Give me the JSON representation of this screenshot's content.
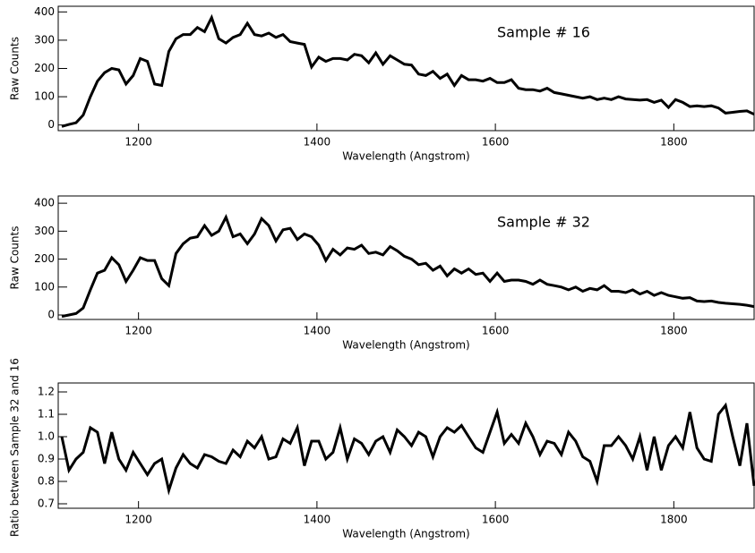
{
  "chart_data": [
    {
      "type": "line",
      "annotation": "Sample # 16",
      "xlabel": "Wavelength (Angstrom)",
      "ylabel": "Raw Counts",
      "color": "#000000",
      "xlim": [
        1110,
        1890
      ],
      "xticks": [
        1200,
        1400,
        1600,
        1800
      ],
      "ylim": [
        -20,
        420
      ],
      "yticks": [
        0,
        100,
        200,
        300,
        400
      ],
      "x": [
        1114,
        1122,
        1130,
        1138,
        1146,
        1154,
        1162,
        1170,
        1178,
        1186,
        1194,
        1202,
        1210,
        1218,
        1226,
        1234,
        1242,
        1250,
        1258,
        1266,
        1274,
        1282,
        1290,
        1298,
        1306,
        1314,
        1322,
        1330,
        1338,
        1346,
        1354,
        1362,
        1370,
        1378,
        1386,
        1394,
        1402,
        1410,
        1418,
        1426,
        1434,
        1442,
        1450,
        1458,
        1466,
        1474,
        1482,
        1490,
        1498,
        1506,
        1514,
        1522,
        1530,
        1538,
        1546,
        1554,
        1562,
        1570,
        1578,
        1586,
        1594,
        1602,
        1610,
        1618,
        1626,
        1634,
        1642,
        1650,
        1658,
        1666,
        1674,
        1682,
        1690,
        1698,
        1706,
        1714,
        1722,
        1730,
        1738,
        1746,
        1754,
        1762,
        1770,
        1778,
        1786,
        1794,
        1802,
        1810,
        1818,
        1826,
        1834,
        1842,
        1850,
        1858,
        1866,
        1874,
        1882,
        1890
      ],
      "values": [
        -5,
        2,
        8,
        35,
        100,
        155,
        185,
        200,
        195,
        145,
        175,
        235,
        225,
        145,
        140,
        260,
        305,
        320,
        320,
        345,
        330,
        380,
        305,
        290,
        310,
        320,
        360,
        320,
        315,
        325,
        310,
        320,
        295,
        290,
        285,
        205,
        240,
        225,
        235,
        235,
        230,
        250,
        245,
        220,
        255,
        215,
        245,
        230,
        215,
        212,
        180,
        175,
        190,
        165,
        180,
        140,
        175,
        160,
        160,
        155,
        165,
        150,
        150,
        160,
        130,
        125,
        125,
        120,
        130,
        115,
        110,
        105,
        100,
        95,
        100,
        90,
        95,
        90,
        100,
        92,
        90,
        88,
        90,
        80,
        88,
        62,
        90,
        80,
        65,
        68,
        65,
        68,
        60,
        42,
        45,
        48,
        50,
        38
      ]
    },
    {
      "type": "line",
      "annotation": "Sample # 32",
      "xlabel": "Wavelength (Angstrom)",
      "ylabel": "Raw Counts",
      "color": "#000000",
      "xlim": [
        1110,
        1890
      ],
      "xticks": [
        1200,
        1400,
        1600,
        1800
      ],
      "ylim": [
        -16,
        426
      ],
      "yticks": [
        0,
        100,
        200,
        300,
        400
      ],
      "x": [
        1114,
        1122,
        1130,
        1138,
        1146,
        1154,
        1162,
        1170,
        1178,
        1186,
        1194,
        1202,
        1210,
        1218,
        1226,
        1234,
        1242,
        1250,
        1258,
        1266,
        1274,
        1282,
        1290,
        1298,
        1306,
        1314,
        1322,
        1330,
        1338,
        1346,
        1354,
        1362,
        1370,
        1378,
        1386,
        1394,
        1402,
        1410,
        1418,
        1426,
        1434,
        1442,
        1450,
        1458,
        1466,
        1474,
        1482,
        1490,
        1498,
        1506,
        1514,
        1522,
        1530,
        1538,
        1546,
        1554,
        1562,
        1570,
        1578,
        1586,
        1594,
        1602,
        1610,
        1618,
        1626,
        1634,
        1642,
        1650,
        1658,
        1666,
        1674,
        1682,
        1690,
        1698,
        1706,
        1714,
        1722,
        1730,
        1738,
        1746,
        1754,
        1762,
        1770,
        1778,
        1786,
        1794,
        1802,
        1810,
        1818,
        1826,
        1834,
        1842,
        1850,
        1858,
        1866,
        1874,
        1882,
        1890
      ],
      "values": [
        -5,
        0,
        5,
        25,
        90,
        150,
        160,
        205,
        180,
        120,
        160,
        205,
        195,
        195,
        130,
        105,
        220,
        255,
        275,
        280,
        320,
        285,
        300,
        350,
        280,
        290,
        255,
        290,
        345,
        320,
        265,
        305,
        310,
        270,
        290,
        280,
        250,
        195,
        235,
        215,
        240,
        235,
        250,
        220,
        225,
        215,
        245,
        230,
        210,
        200,
        180,
        185,
        160,
        175,
        140,
        165,
        150,
        165,
        145,
        150,
        120,
        150,
        120,
        125,
        125,
        120,
        110,
        125,
        110,
        105,
        100,
        90,
        100,
        85,
        95,
        90,
        105,
        85,
        85,
        80,
        90,
        75,
        85,
        70,
        80,
        70,
        65,
        60,
        62,
        50,
        48,
        50,
        45,
        42,
        40,
        38,
        35,
        30
      ]
    },
    {
      "type": "line",
      "xlabel": "Wavelength (Angstrom)",
      "ylabel": "Ratio between Sample 32 and 16",
      "color": "#000000",
      "xlim": [
        1110,
        1890
      ],
      "xticks": [
        1200,
        1400,
        1600,
        1800
      ],
      "ylim": [
        0.68,
        1.24
      ],
      "yticks": [
        0.7,
        0.8,
        0.9,
        {
          "value": 1,
          "label": "1.0"
        },
        1.1,
        1.2
      ],
      "x": [
        1114,
        1122,
        1130,
        1138,
        1146,
        1154,
        1162,
        1170,
        1178,
        1186,
        1194,
        1202,
        1210,
        1218,
        1226,
        1234,
        1242,
        1250,
        1258,
        1266,
        1274,
        1282,
        1290,
        1298,
        1306,
        1314,
        1322,
        1330,
        1338,
        1346,
        1354,
        1362,
        1370,
        1378,
        1386,
        1394,
        1402,
        1410,
        1418,
        1426,
        1434,
        1442,
        1450,
        1458,
        1466,
        1474,
        1482,
        1490,
        1498,
        1506,
        1514,
        1522,
        1530,
        1538,
        1546,
        1554,
        1562,
        1570,
        1578,
        1586,
        1594,
        1602,
        1610,
        1618,
        1626,
        1634,
        1642,
        1650,
        1658,
        1666,
        1674,
        1682,
        1690,
        1698,
        1706,
        1714,
        1722,
        1730,
        1738,
        1746,
        1754,
        1762,
        1770,
        1778,
        1786,
        1794,
        1802,
        1810,
        1818,
        1826,
        1834,
        1842,
        1850,
        1858,
        1866,
        1874,
        1882,
        1890
      ],
      "values": [
        1.0,
        0.85,
        0.9,
        0.93,
        1.04,
        1.02,
        0.88,
        1.02,
        0.9,
        0.85,
        0.93,
        0.88,
        0.83,
        0.88,
        0.9,
        0.76,
        0.86,
        0.92,
        0.88,
        0.86,
        0.92,
        0.91,
        0.89,
        0.88,
        0.94,
        0.91,
        0.98,
        0.95,
        1.0,
        0.9,
        0.91,
        0.99,
        0.97,
        1.04,
        0.87,
        0.98,
        0.98,
        0.9,
        0.93,
        1.04,
        0.9,
        0.99,
        0.97,
        0.92,
        0.98,
        1.0,
        0.93,
        1.03,
        1.0,
        0.96,
        1.02,
        1.0,
        0.91,
        1.0,
        1.04,
        1.02,
        1.05,
        1.0,
        0.95,
        0.93,
        1.02,
        1.11,
        0.97,
        1.01,
        0.97,
        1.06,
        1.0,
        0.92,
        0.98,
        0.97,
        0.92,
        1.02,
        0.98,
        0.91,
        0.89,
        0.8,
        0.96,
        0.96,
        1.0,
        0.96,
        0.9,
        1.0,
        0.85,
        1.0,
        0.85,
        0.96,
        1.0,
        0.95,
        1.11,
        0.95,
        0.9,
        0.89,
        1.1,
        1.14,
        1.0,
        0.87,
        1.06,
        0.78
      ]
    }
  ]
}
